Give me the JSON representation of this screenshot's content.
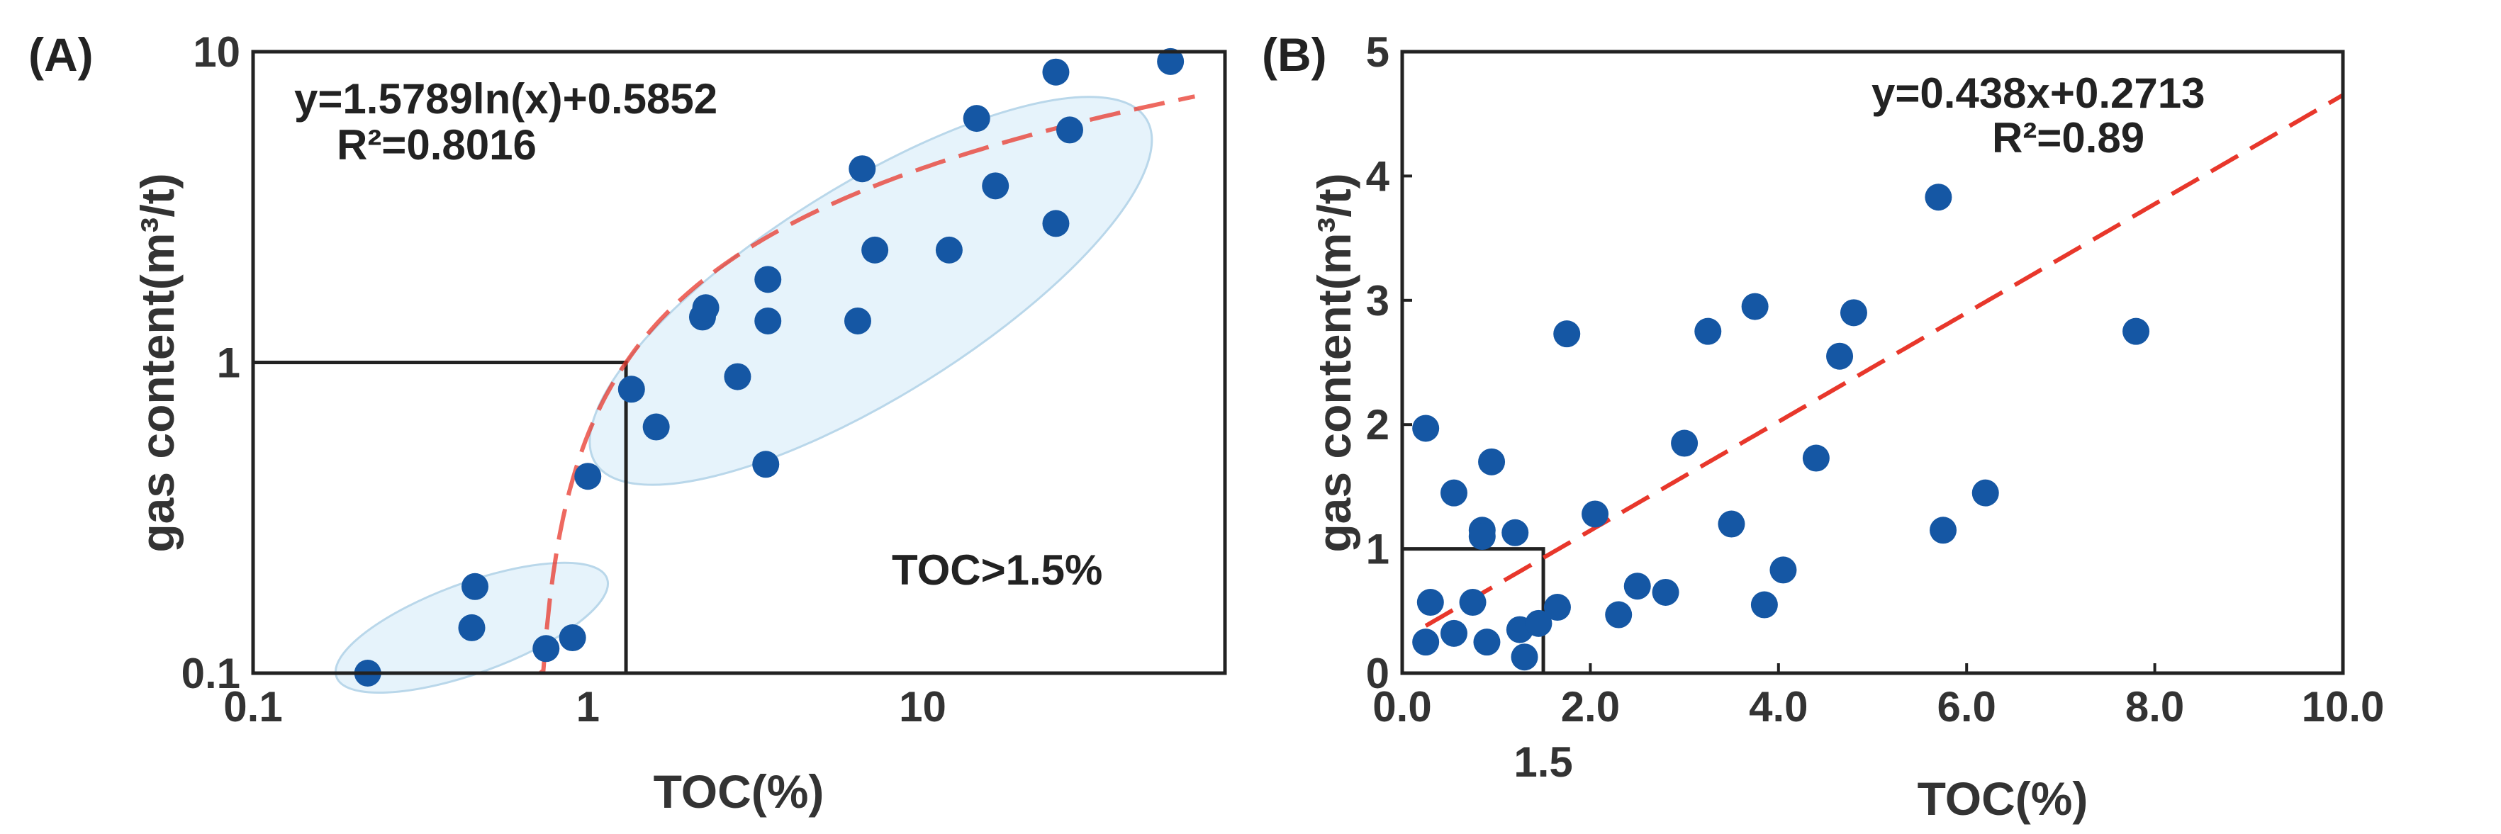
{
  "colors": {
    "point": "#1557a4",
    "fit_line": "#e8372b",
    "cluster_fill": "#e6f3fb",
    "frame": "#222222"
  },
  "chart_data": [
    {
      "type": "scatter",
      "panel_label": "(A)",
      "xlabel": "TOC(%)",
      "ylabel": "gas content(m³/t)",
      "x_scale": "log",
      "y_scale": "log",
      "xlim": [
        0.1,
        80
      ],
      "ylim": [
        0.1,
        10
      ],
      "x_ticks": [
        {
          "value": 0.1,
          "label": "0.1"
        },
        {
          "value": 1,
          "label": "1"
        },
        {
          "value": 10,
          "label": "10"
        }
      ],
      "y_ticks": [
        {
          "value": 0.1,
          "label": "0.1"
        },
        {
          "value": 1,
          "label": "1"
        },
        {
          "value": 10,
          "label": "10"
        }
      ],
      "equation": "y=1.5789ln(x)+0.5852",
      "r2": "R²=0.8016",
      "annotation": "TOC>1.5%",
      "fit": {
        "a": 1.5789,
        "b": 0.5852,
        "x_range": [
          0.72,
          65
        ],
        "form": "a*ln(x)+b"
      },
      "reference_box": {
        "x": 1.3,
        "y": 1
      },
      "clusters": [
        {
          "center": [
            0.45,
            0.14
          ],
          "semi_axes_decades": [
            0.43,
            0.145
          ],
          "rotation": -20
        },
        {
          "center": [
            7.0,
            1.7
          ],
          "semi_axes_decades": [
            0.97,
            0.34
          ],
          "rotation": -32
        }
      ],
      "points": [
        [
          0.22,
          0.1
        ],
        [
          0.45,
          0.14
        ],
        [
          0.46,
          0.19
        ],
        [
          0.75,
          0.12
        ],
        [
          0.9,
          0.13
        ],
        [
          1.0,
          0.43
        ],
        [
          1.35,
          0.82
        ],
        [
          1.6,
          0.62
        ],
        [
          2.2,
          1.4
        ],
        [
          2.25,
          1.5
        ],
        [
          2.8,
          0.9
        ],
        [
          3.4,
          0.47
        ],
        [
          3.45,
          1.85
        ],
        [
          3.45,
          1.36
        ],
        [
          6.4,
          1.36
        ],
        [
          6.6,
          4.2
        ],
        [
          7.2,
          2.3
        ],
        [
          12.0,
          2.3
        ],
        [
          14.5,
          6.1
        ],
        [
          16.5,
          3.7
        ],
        [
          25.0,
          2.8
        ],
        [
          25.0,
          8.6
        ],
        [
          27.5,
          5.6
        ],
        [
          55.0,
          9.3
        ]
      ]
    },
    {
      "type": "scatter",
      "panel_label": "(B)",
      "xlabel": "TOC(%)",
      "ylabel": "gas content(m³/t)",
      "x_scale": "linear",
      "y_scale": "linear",
      "xlim": [
        0,
        10
      ],
      "ylim": [
        0,
        5
      ],
      "x_ticks": [
        {
          "value": 0,
          "label": "0.0"
        },
        {
          "value": 2,
          "label": "2.0"
        },
        {
          "value": 4,
          "label": "4.0"
        },
        {
          "value": 6,
          "label": "6.0"
        },
        {
          "value": 8,
          "label": "8.0"
        },
        {
          "value": 10,
          "label": "10.0"
        }
      ],
      "extra_x_label": {
        "value": 1.5,
        "label": "1.5"
      },
      "y_ticks": [
        {
          "value": 0,
          "label": "0"
        },
        {
          "value": 1,
          "label": "1"
        },
        {
          "value": 2,
          "label": "2"
        },
        {
          "value": 3,
          "label": "3"
        },
        {
          "value": 4,
          "label": "4"
        },
        {
          "value": 5,
          "label": "5"
        }
      ],
      "equation": "y=0.438x+0.2713",
      "r2": "R²=0.89",
      "fit": {
        "slope": 0.438,
        "intercept": 0.2713,
        "x_range": [
          0.25,
          10
        ],
        "form": "linear"
      },
      "reference_box": {
        "x": 1.5,
        "y": 1
      },
      "points": [
        [
          0.25,
          1.97
        ],
        [
          0.25,
          0.25
        ],
        [
          0.3,
          0.57
        ],
        [
          0.55,
          1.45
        ],
        [
          0.55,
          0.32
        ],
        [
          0.75,
          0.57
        ],
        [
          0.85,
          1.15
        ],
        [
          0.85,
          1.1
        ],
        [
          0.9,
          0.25
        ],
        [
          0.95,
          1.7
        ],
        [
          1.2,
          1.13
        ],
        [
          1.25,
          0.35
        ],
        [
          1.3,
          0.13
        ],
        [
          1.45,
          0.4
        ],
        [
          1.65,
          0.53
        ],
        [
          1.75,
          2.73
        ],
        [
          2.05,
          1.28
        ],
        [
          2.3,
          0.47
        ],
        [
          2.5,
          0.7
        ],
        [
          2.8,
          0.65
        ],
        [
          3.0,
          1.85
        ],
        [
          3.25,
          2.75
        ],
        [
          3.5,
          1.2
        ],
        [
          3.75,
          2.95
        ],
        [
          3.85,
          0.55
        ],
        [
          4.05,
          0.83
        ],
        [
          4.4,
          1.73
        ],
        [
          4.65,
          2.55
        ],
        [
          4.8,
          2.9
        ],
        [
          5.7,
          3.83
        ],
        [
          5.75,
          1.15
        ],
        [
          6.2,
          1.45
        ],
        [
          7.8,
          2.75
        ]
      ]
    }
  ]
}
